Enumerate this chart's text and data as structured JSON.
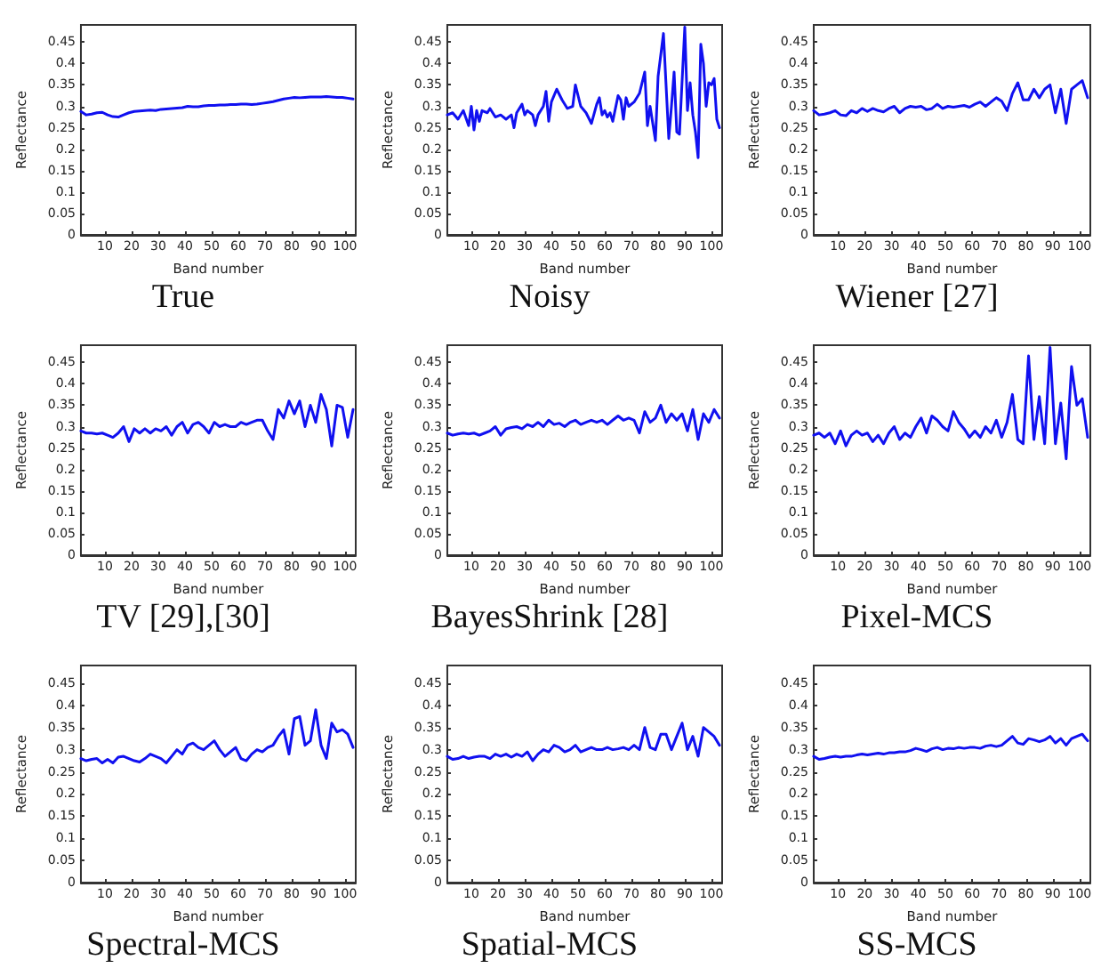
{
  "chart_data": [
    {
      "type": "line",
      "title": "True",
      "xlabel": "Band number",
      "ylabel": "Reflectance",
      "color": "#1010f0",
      "xlim": [
        1,
        104
      ],
      "ylim": [
        0,
        0.49
      ],
      "xticks": [
        10,
        20,
        30,
        40,
        50,
        60,
        70,
        80,
        90,
        100
      ],
      "yticks": [
        0,
        0.05,
        0.1,
        0.15,
        0.2,
        0.25,
        0.3,
        0.35,
        0.4,
        0.45
      ],
      "x": [
        1,
        3,
        5,
        7,
        9,
        11,
        13,
        15,
        17,
        19,
        21,
        23,
        25,
        27,
        29,
        31,
        33,
        35,
        37,
        39,
        41,
        43,
        45,
        47,
        49,
        51,
        53,
        55,
        57,
        59,
        61,
        63,
        65,
        67,
        69,
        71,
        73,
        75,
        77,
        79,
        81,
        83,
        85,
        87,
        89,
        91,
        93,
        95,
        97,
        99,
        101,
        103
      ],
      "values": [
        0.288,
        0.28,
        0.282,
        0.285,
        0.286,
        0.28,
        0.276,
        0.275,
        0.28,
        0.285,
        0.288,
        0.289,
        0.29,
        0.291,
        0.29,
        0.293,
        0.294,
        0.295,
        0.296,
        0.297,
        0.3,
        0.299,
        0.299,
        0.301,
        0.302,
        0.302,
        0.303,
        0.303,
        0.304,
        0.304,
        0.305,
        0.305,
        0.304,
        0.305,
        0.307,
        0.309,
        0.311,
        0.314,
        0.317,
        0.319,
        0.321,
        0.32,
        0.321,
        0.322,
        0.322,
        0.322,
        0.323,
        0.322,
        0.321,
        0.321,
        0.319,
        0.317
      ]
    },
    {
      "type": "line",
      "title": "Noisy",
      "xlabel": "Band number",
      "ylabel": "Reflectance",
      "color": "#1010f0",
      "xlim": [
        1,
        104
      ],
      "ylim": [
        0,
        0.49
      ],
      "xticks": [
        10,
        20,
        30,
        40,
        50,
        60,
        70,
        80,
        90,
        100
      ],
      "yticks": [
        0,
        0.05,
        0.1,
        0.15,
        0.2,
        0.25,
        0.3,
        0.35,
        0.4,
        0.45
      ],
      "x": [
        1,
        3,
        5,
        7,
        9,
        10,
        11,
        12,
        13,
        14,
        16,
        17,
        19,
        21,
        23,
        25,
        26,
        27,
        29,
        30,
        31,
        33,
        34,
        35,
        37,
        38,
        39,
        40,
        42,
        44,
        46,
        48,
        49,
        51,
        53,
        55,
        57,
        58,
        59,
        60,
        61,
        62,
        63,
        65,
        66,
        67,
        68,
        69,
        71,
        73,
        75,
        76,
        77,
        79,
        80,
        82,
        84,
        85,
        86,
        87,
        88,
        90,
        91,
        92,
        93,
        94,
        95,
        96,
        97,
        98,
        99,
        100,
        101,
        102,
        103
      ],
      "values": [
        0.28,
        0.285,
        0.27,
        0.29,
        0.255,
        0.3,
        0.245,
        0.29,
        0.265,
        0.29,
        0.285,
        0.295,
        0.275,
        0.28,
        0.27,
        0.28,
        0.25,
        0.285,
        0.305,
        0.28,
        0.29,
        0.28,
        0.255,
        0.28,
        0.3,
        0.335,
        0.265,
        0.31,
        0.34,
        0.315,
        0.295,
        0.3,
        0.35,
        0.3,
        0.285,
        0.26,
        0.305,
        0.32,
        0.28,
        0.29,
        0.275,
        0.285,
        0.265,
        0.325,
        0.315,
        0.27,
        0.32,
        0.3,
        0.31,
        0.33,
        0.38,
        0.255,
        0.3,
        0.22,
        0.37,
        0.47,
        0.225,
        0.3,
        0.38,
        0.24,
        0.235,
        0.485,
        0.29,
        0.355,
        0.28,
        0.24,
        0.18,
        0.445,
        0.4,
        0.3,
        0.355,
        0.35,
        0.365,
        0.27,
        0.25
      ]
    },
    {
      "type": "line",
      "title": "Wiener [27]",
      "xlabel": "Band number",
      "ylabel": "Reflectance",
      "color": "#1010f0",
      "xlim": [
        1,
        104
      ],
      "ylim": [
        0,
        0.49
      ],
      "xticks": [
        10,
        20,
        30,
        40,
        50,
        60,
        70,
        80,
        90,
        100
      ],
      "yticks": [
        0,
        0.05,
        0.1,
        0.15,
        0.2,
        0.25,
        0.3,
        0.35,
        0.4,
        0.45
      ],
      "x": [
        1,
        3,
        5,
        7,
        9,
        11,
        13,
        15,
        17,
        19,
        21,
        23,
        25,
        27,
        29,
        31,
        33,
        35,
        37,
        39,
        41,
        43,
        45,
        47,
        49,
        51,
        53,
        55,
        57,
        59,
        61,
        63,
        65,
        67,
        69,
        71,
        73,
        75,
        77,
        79,
        81,
        83,
        85,
        87,
        89,
        91,
        93,
        95,
        97,
        99,
        101,
        103
      ],
      "values": [
        0.29,
        0.28,
        0.282,
        0.285,
        0.29,
        0.28,
        0.278,
        0.29,
        0.285,
        0.295,
        0.288,
        0.295,
        0.29,
        0.287,
        0.295,
        0.3,
        0.285,
        0.295,
        0.3,
        0.298,
        0.3,
        0.292,
        0.295,
        0.305,
        0.295,
        0.3,
        0.298,
        0.3,
        0.302,
        0.298,
        0.305,
        0.31,
        0.3,
        0.31,
        0.32,
        0.312,
        0.29,
        0.33,
        0.355,
        0.315,
        0.315,
        0.34,
        0.32,
        0.34,
        0.35,
        0.285,
        0.34,
        0.26,
        0.34,
        0.35,
        0.36,
        0.32
      ]
    },
    {
      "type": "line",
      "title": "TV [29],[30]",
      "xlabel": "Band number",
      "ylabel": "Reflectance",
      "color": "#1010f0",
      "xlim": [
        1,
        104
      ],
      "ylim": [
        0,
        0.49
      ],
      "xticks": [
        10,
        20,
        30,
        40,
        50,
        60,
        70,
        80,
        90,
        100
      ],
      "yticks": [
        0,
        0.05,
        0.1,
        0.15,
        0.2,
        0.25,
        0.3,
        0.35,
        0.4,
        0.45
      ],
      "x": [
        1,
        3,
        5,
        7,
        9,
        11,
        13,
        15,
        17,
        19,
        21,
        23,
        25,
        27,
        29,
        31,
        33,
        35,
        37,
        39,
        41,
        43,
        45,
        47,
        49,
        51,
        53,
        55,
        57,
        59,
        61,
        63,
        65,
        67,
        69,
        71,
        73,
        75,
        77,
        79,
        81,
        83,
        85,
        87,
        89,
        91,
        93,
        95,
        97,
        99,
        101,
        103
      ],
      "values": [
        0.29,
        0.285,
        0.285,
        0.283,
        0.285,
        0.28,
        0.275,
        0.285,
        0.3,
        0.265,
        0.295,
        0.285,
        0.295,
        0.285,
        0.295,
        0.29,
        0.3,
        0.28,
        0.3,
        0.31,
        0.285,
        0.305,
        0.31,
        0.3,
        0.285,
        0.31,
        0.3,
        0.305,
        0.3,
        0.3,
        0.31,
        0.305,
        0.31,
        0.315,
        0.315,
        0.29,
        0.27,
        0.34,
        0.32,
        0.36,
        0.33,
        0.36,
        0.3,
        0.35,
        0.31,
        0.375,
        0.34,
        0.255,
        0.35,
        0.345,
        0.275,
        0.34
      ]
    },
    {
      "type": "line",
      "title": "BayesShrink [28]",
      "xlabel": "Band number",
      "ylabel": "Reflectance",
      "color": "#1010f0",
      "xlim": [
        1,
        104
      ],
      "ylim": [
        0,
        0.49
      ],
      "xticks": [
        10,
        20,
        30,
        40,
        50,
        60,
        70,
        80,
        90,
        100
      ],
      "yticks": [
        0,
        0.05,
        0.1,
        0.15,
        0.2,
        0.25,
        0.3,
        0.35,
        0.4,
        0.45
      ],
      "x": [
        1,
        3,
        5,
        7,
        9,
        11,
        13,
        15,
        17,
        19,
        21,
        23,
        25,
        27,
        29,
        31,
        33,
        35,
        37,
        39,
        41,
        43,
        45,
        47,
        49,
        51,
        53,
        55,
        57,
        59,
        61,
        63,
        65,
        67,
        69,
        71,
        73,
        75,
        77,
        79,
        81,
        83,
        85,
        87,
        89,
        91,
        93,
        95,
        97,
        99,
        101,
        103
      ],
      "values": [
        0.285,
        0.28,
        0.283,
        0.285,
        0.283,
        0.285,
        0.28,
        0.285,
        0.29,
        0.3,
        0.28,
        0.295,
        0.298,
        0.3,
        0.295,
        0.305,
        0.3,
        0.31,
        0.3,
        0.315,
        0.305,
        0.308,
        0.3,
        0.31,
        0.315,
        0.305,
        0.31,
        0.315,
        0.31,
        0.315,
        0.305,
        0.315,
        0.325,
        0.315,
        0.32,
        0.315,
        0.285,
        0.335,
        0.31,
        0.32,
        0.35,
        0.31,
        0.33,
        0.315,
        0.33,
        0.29,
        0.34,
        0.27,
        0.33,
        0.31,
        0.34,
        0.32
      ]
    },
    {
      "type": "line",
      "title": "Pixel-MCS",
      "xlabel": "Band number",
      "ylabel": "Reflectance",
      "color": "#1010f0",
      "xlim": [
        1,
        104
      ],
      "ylim": [
        0,
        0.49
      ],
      "xticks": [
        10,
        20,
        30,
        40,
        50,
        60,
        70,
        80,
        90,
        100
      ],
      "yticks": [
        0,
        0.05,
        0.1,
        0.15,
        0.2,
        0.25,
        0.3,
        0.35,
        0.4,
        0.45
      ],
      "x": [
        1,
        3,
        5,
        7,
        9,
        11,
        13,
        15,
        17,
        19,
        21,
        23,
        25,
        27,
        29,
        31,
        33,
        35,
        37,
        39,
        41,
        43,
        45,
        47,
        49,
        51,
        53,
        55,
        57,
        59,
        61,
        63,
        65,
        67,
        69,
        71,
        73,
        75,
        77,
        79,
        81,
        83,
        85,
        87,
        89,
        91,
        93,
        95,
        97,
        99,
        101,
        103
      ],
      "values": [
        0.28,
        0.285,
        0.275,
        0.285,
        0.26,
        0.29,
        0.255,
        0.28,
        0.29,
        0.28,
        0.285,
        0.265,
        0.28,
        0.26,
        0.285,
        0.3,
        0.27,
        0.285,
        0.275,
        0.3,
        0.32,
        0.285,
        0.325,
        0.315,
        0.3,
        0.29,
        0.335,
        0.31,
        0.295,
        0.275,
        0.29,
        0.275,
        0.3,
        0.285,
        0.315,
        0.275,
        0.31,
        0.375,
        0.27,
        0.26,
        0.465,
        0.27,
        0.37,
        0.26,
        0.485,
        0.26,
        0.355,
        0.225,
        0.44,
        0.35,
        0.365,
        0.275
      ]
    },
    {
      "type": "line",
      "title": "Spectral-MCS",
      "xlabel": "Band number",
      "ylabel": "Reflectance",
      "color": "#1010f0",
      "xlim": [
        1,
        104
      ],
      "ylim": [
        0,
        0.49
      ],
      "xticks": [
        10,
        20,
        30,
        40,
        50,
        60,
        70,
        80,
        90,
        100
      ],
      "yticks": [
        0,
        0.05,
        0.1,
        0.15,
        0.2,
        0.25,
        0.3,
        0.35,
        0.4,
        0.45
      ],
      "x": [
        1,
        3,
        5,
        7,
        9,
        11,
        13,
        15,
        17,
        19,
        21,
        23,
        25,
        27,
        29,
        31,
        33,
        35,
        37,
        39,
        41,
        43,
        45,
        47,
        49,
        51,
        53,
        55,
        57,
        59,
        61,
        63,
        65,
        67,
        69,
        71,
        73,
        75,
        77,
        79,
        81,
        83,
        85,
        87,
        89,
        91,
        93,
        95,
        97,
        99,
        101,
        103
      ],
      "values": [
        0.28,
        0.275,
        0.278,
        0.28,
        0.27,
        0.278,
        0.27,
        0.283,
        0.285,
        0.28,
        0.275,
        0.272,
        0.28,
        0.29,
        0.285,
        0.28,
        0.27,
        0.285,
        0.3,
        0.29,
        0.31,
        0.315,
        0.305,
        0.3,
        0.31,
        0.32,
        0.3,
        0.285,
        0.295,
        0.305,
        0.28,
        0.275,
        0.29,
        0.3,
        0.295,
        0.305,
        0.31,
        0.33,
        0.345,
        0.29,
        0.37,
        0.375,
        0.31,
        0.32,
        0.39,
        0.31,
        0.28,
        0.36,
        0.34,
        0.345,
        0.335,
        0.305
      ]
    },
    {
      "type": "line",
      "title": "Spatial-MCS",
      "xlabel": "Band number",
      "ylabel": "Reflectance",
      "color": "#1010f0",
      "xlim": [
        1,
        104
      ],
      "ylim": [
        0,
        0.49
      ],
      "xticks": [
        10,
        20,
        30,
        40,
        50,
        60,
        70,
        80,
        90,
        100
      ],
      "yticks": [
        0,
        0.05,
        0.1,
        0.15,
        0.2,
        0.25,
        0.3,
        0.35,
        0.4,
        0.45
      ],
      "x": [
        1,
        3,
        5,
        7,
        9,
        11,
        13,
        15,
        17,
        19,
        21,
        23,
        25,
        27,
        29,
        31,
        33,
        35,
        37,
        39,
        41,
        43,
        45,
        47,
        49,
        51,
        53,
        55,
        57,
        59,
        61,
        63,
        65,
        67,
        69,
        71,
        73,
        75,
        77,
        79,
        81,
        83,
        85,
        87,
        89,
        91,
        93,
        95,
        97,
        99,
        101,
        103
      ],
      "values": [
        0.285,
        0.278,
        0.28,
        0.285,
        0.28,
        0.283,
        0.285,
        0.285,
        0.28,
        0.29,
        0.285,
        0.29,
        0.283,
        0.29,
        0.285,
        0.295,
        0.275,
        0.29,
        0.3,
        0.295,
        0.31,
        0.305,
        0.295,
        0.3,
        0.31,
        0.295,
        0.3,
        0.305,
        0.3,
        0.3,
        0.305,
        0.3,
        0.302,
        0.305,
        0.3,
        0.31,
        0.3,
        0.35,
        0.305,
        0.3,
        0.335,
        0.335,
        0.3,
        0.33,
        0.36,
        0.3,
        0.33,
        0.285,
        0.35,
        0.34,
        0.33,
        0.31
      ]
    },
    {
      "type": "line",
      "title": "SS-MCS",
      "xlabel": "Band number",
      "ylabel": "Reflectance",
      "color": "#1010f0",
      "xlim": [
        1,
        104
      ],
      "ylim": [
        0,
        0.49
      ],
      "xticks": [
        10,
        20,
        30,
        40,
        50,
        60,
        70,
        80,
        90,
        100
      ],
      "yticks": [
        0,
        0.05,
        0.1,
        0.15,
        0.2,
        0.25,
        0.3,
        0.35,
        0.4,
        0.45
      ],
      "x": [
        1,
        3,
        5,
        7,
        9,
        11,
        13,
        15,
        17,
        19,
        21,
        23,
        25,
        27,
        29,
        31,
        33,
        35,
        37,
        39,
        41,
        43,
        45,
        47,
        49,
        51,
        53,
        55,
        57,
        59,
        61,
        63,
        65,
        67,
        69,
        71,
        73,
        75,
        77,
        79,
        81,
        83,
        85,
        87,
        89,
        91,
        93,
        95,
        97,
        99,
        101,
        103
      ],
      "values": [
        0.285,
        0.278,
        0.28,
        0.283,
        0.285,
        0.283,
        0.285,
        0.285,
        0.288,
        0.29,
        0.288,
        0.29,
        0.292,
        0.29,
        0.293,
        0.293,
        0.295,
        0.295,
        0.298,
        0.303,
        0.3,
        0.296,
        0.302,
        0.305,
        0.3,
        0.303,
        0.302,
        0.305,
        0.303,
        0.305,
        0.305,
        0.303,
        0.308,
        0.31,
        0.307,
        0.31,
        0.32,
        0.33,
        0.315,
        0.312,
        0.325,
        0.322,
        0.318,
        0.322,
        0.33,
        0.315,
        0.325,
        0.31,
        0.325,
        0.33,
        0.335,
        0.32
      ]
    }
  ]
}
